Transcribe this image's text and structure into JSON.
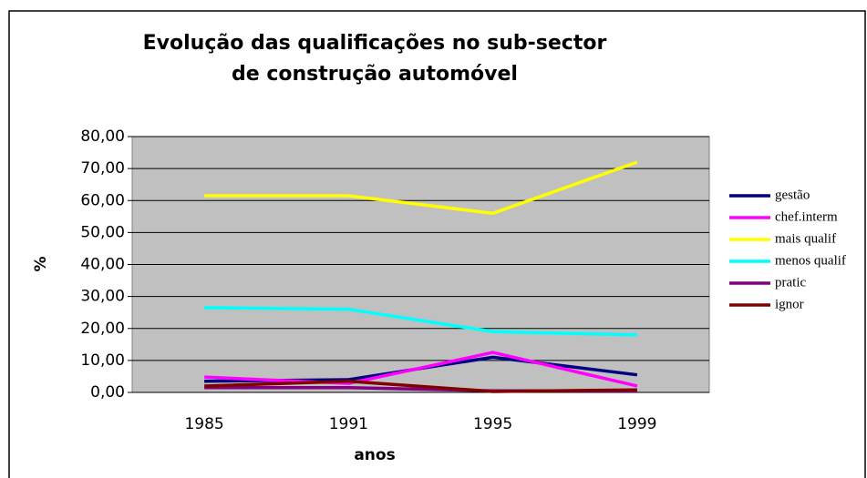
{
  "chart_data": {
    "type": "line",
    "title": [
      "Evolução das qualificações no sub-sector",
      "de construção automóvel"
    ],
    "x_label": "anos",
    "y_label": "%",
    "categories": [
      "1985",
      "1991",
      "1995",
      "1999"
    ],
    "series": [
      {
        "name": "gestão",
        "color": "#000080",
        "values": [
          3.5,
          4.0,
          11.0,
          5.5
        ]
      },
      {
        "name": "chef.interm",
        "color": "#ff00ff",
        "values": [
          4.8,
          2.8,
          12.5,
          2.0
        ]
      },
      {
        "name": "mais qualif",
        "color": "#ffff00",
        "values": [
          61.5,
          61.5,
          56.0,
          72.0
        ]
      },
      {
        "name": "menos qualif",
        "color": "#00ffff",
        "values": [
          26.5,
          26.0,
          19.0,
          18.0
        ]
      },
      {
        "name": "pratic",
        "color": "#800080",
        "values": [
          1.5,
          1.5,
          0.5,
          0.5
        ]
      },
      {
        "name": "ignor",
        "color": "#800000",
        "values": [
          2.0,
          3.5,
          0.3,
          0.8
        ]
      }
    ],
    "ylim": [
      0,
      80
    ],
    "yticks": [
      {
        "value": 0,
        "label": "0,00"
      },
      {
        "value": 10,
        "label": "10,00"
      },
      {
        "value": 20,
        "label": "20,00"
      },
      {
        "value": 30,
        "label": "30,00"
      },
      {
        "value": 40,
        "label": "40,00"
      },
      {
        "value": 50,
        "label": "50,00"
      },
      {
        "value": 60,
        "label": "60,00"
      },
      {
        "value": 70,
        "label": "70,00"
      },
      {
        "value": 80,
        "label": "80,00"
      }
    ],
    "grid": true,
    "legend": "right"
  }
}
